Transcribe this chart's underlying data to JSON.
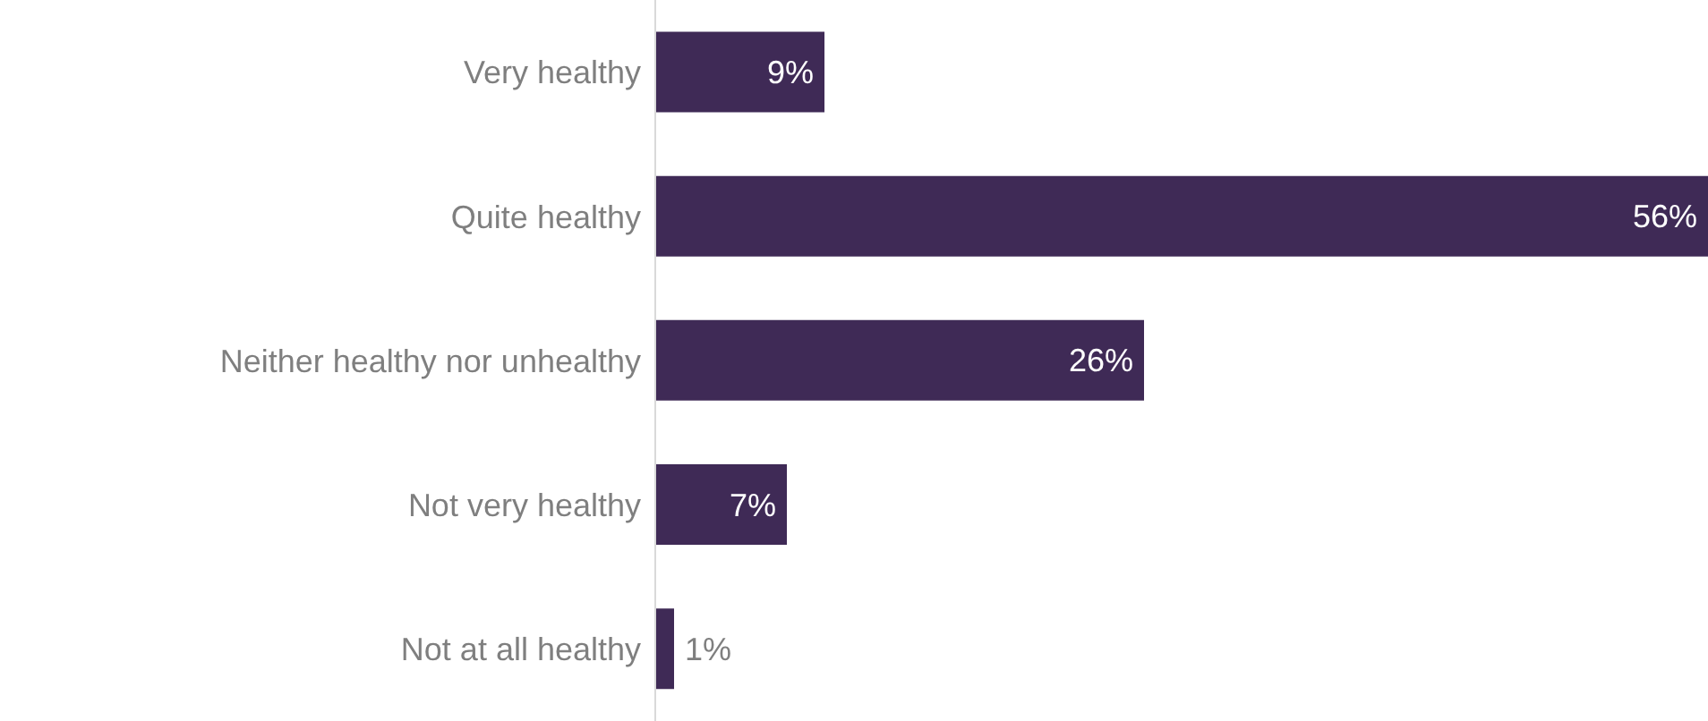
{
  "chart_data": {
    "type": "bar",
    "orientation": "horizontal",
    "categories": [
      "Very healthy",
      "Quite healthy",
      "Neither healthy nor unhealthy",
      "Not very healthy",
      "Not at all healthy"
    ],
    "values": [
      9,
      56,
      26,
      7,
      1
    ],
    "color": "#3f2a56",
    "value_labels": [
      "9%",
      "56%",
      "26%",
      "7%",
      "1%"
    ]
  }
}
